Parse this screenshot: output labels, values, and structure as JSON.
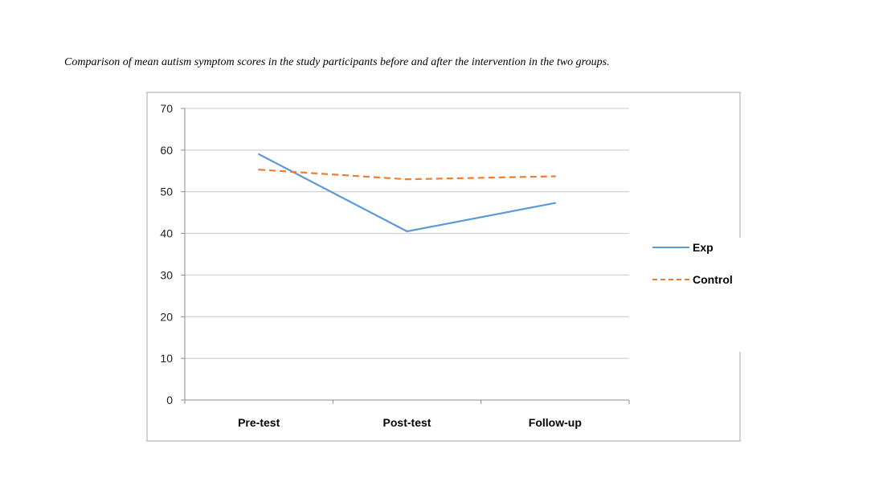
{
  "caption": "Comparison of mean autism symptom scores in the study participants before and after the intervention in the two groups.",
  "chart_data": {
    "type": "line",
    "title": "",
    "xlabel": "",
    "ylabel": "",
    "categories": [
      "Pre-test",
      "Post-test",
      "Follow-up"
    ],
    "ylim": [
      0,
      70
    ],
    "yticks": [
      "0",
      "10",
      "20",
      "30",
      "40",
      "50",
      "60",
      "70"
    ],
    "grid": true,
    "legend_position": "right",
    "series": [
      {
        "name": "Exp",
        "values": [
          59,
          40.5,
          47.3
        ],
        "color": "#5B9BD5",
        "style": "solid"
      },
      {
        "name": "Control",
        "values": [
          55.3,
          53,
          53.7
        ],
        "color": "#ED7D31",
        "style": "dashed"
      }
    ]
  }
}
